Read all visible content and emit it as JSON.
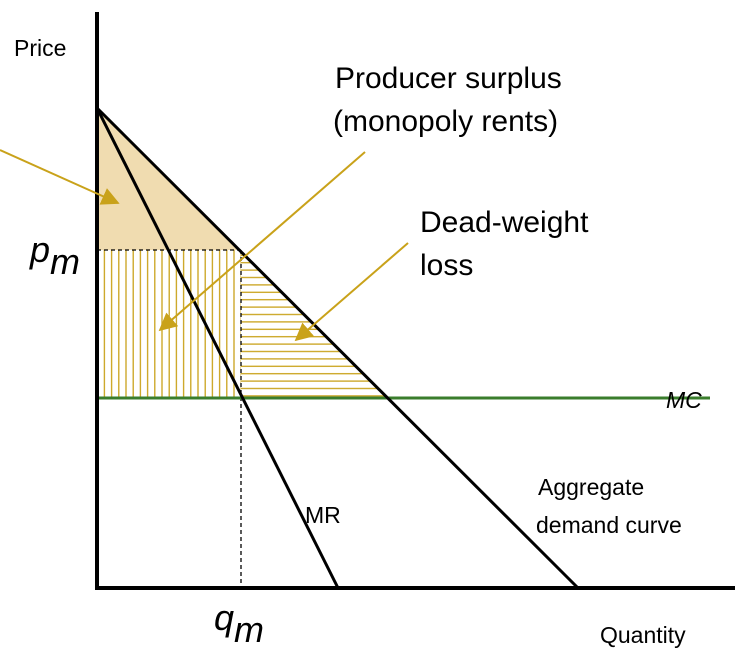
{
  "axes": {
    "y_label": "Price",
    "x_label": "Quantity"
  },
  "annotations": {
    "producer_surplus": [
      "Producer surplus",
      "(monopoly rents)"
    ],
    "dead_weight_loss": [
      "Dead-weight",
      "loss"
    ],
    "pm": {
      "base": "p",
      "sub": "m"
    },
    "qm": {
      "base": "q",
      "sub": "m"
    },
    "mc": "MC",
    "mr": "MR",
    "demand": [
      "Aggregate",
      "demand curve"
    ]
  }
}
